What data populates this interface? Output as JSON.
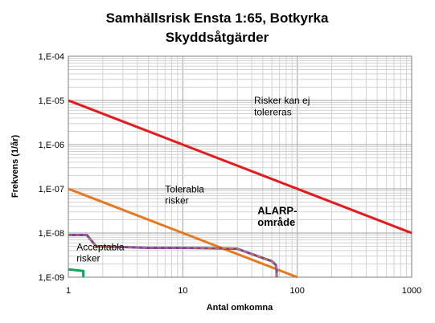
{
  "chart_data": {
    "type": "line",
    "title": "Samhällsrisk  Ensta 1:65, Botkyrka",
    "subtitle": "Skyddsåtgärder",
    "xlabel": "Antal omkomna",
    "ylabel": "Frekvens (1/år)",
    "x_scale": "log",
    "y_scale": "log",
    "xlim": [
      1,
      1000
    ],
    "ylim": [
      1e-09,
      0.0001
    ],
    "grid": true,
    "x_ticks": [
      {
        "value": 1,
        "label": "1"
      },
      {
        "value": 10,
        "label": "10"
      },
      {
        "value": 100,
        "label": "100"
      },
      {
        "value": 1000,
        "label": "1000"
      }
    ],
    "y_ticks": [
      {
        "value": 0.0001,
        "label": "1,E-04"
      },
      {
        "value": 1e-05,
        "label": "1,E-05"
      },
      {
        "value": 1e-06,
        "label": "1,E-06"
      },
      {
        "value": 1e-07,
        "label": "1,E-07"
      },
      {
        "value": 1e-08,
        "label": "1,E-08"
      },
      {
        "value": 1e-09,
        "label": "1,E-09"
      }
    ],
    "series": [
      {
        "color": "#e8191c",
        "x": [
          1,
          1000
        ],
        "y": [
          1e-05,
          1e-08
        ]
      },
      {
        "color": "#e8781e",
        "x": [
          1,
          100
        ],
        "y": [
          1e-07,
          1e-09
        ]
      },
      {
        "color": "#6a4aa8",
        "dashed_color": "#e8781e",
        "x": [
          1,
          1.45,
          1.75,
          3,
          5,
          10,
          20,
          30,
          45,
          60,
          65,
          66,
          66
        ],
        "y": [
          9e-09,
          9e-09,
          5e-09,
          4.8e-09,
          4.6e-09,
          4.6e-09,
          4.5e-09,
          4.4e-09,
          3e-09,
          2.3e-09,
          1.9e-09,
          1.4e-09,
          1e-09
        ]
      },
      {
        "color": "#1aa05a",
        "x": [
          1,
          1.35,
          1.35
        ],
        "y": [
          1.5e-09,
          1.38e-09,
          1e-09
        ]
      }
    ],
    "annotations": [
      {
        "text": "Risker kan ej",
        "x": 42,
        "y": 8.5e-06
      },
      {
        "text": "tolereras",
        "x": 42,
        "y": 4.6e-06
      },
      {
        "text": "Tolerabla",
        "x": 7.0,
        "y": 8.2e-08
      },
      {
        "text": "risker",
        "x": 7.0,
        "y": 4.6e-08
      },
      {
        "text": "ALARP-",
        "x": 45,
        "y": 2.7e-08
      },
      {
        "text": "område",
        "x": 45,
        "y": 1.45e-08
      },
      {
        "text": "Acceptabla",
        "x": 1.18,
        "y": 4.1e-09
      },
      {
        "text": "risker",
        "x": 1.18,
        "y": 2.25e-09
      }
    ]
  }
}
